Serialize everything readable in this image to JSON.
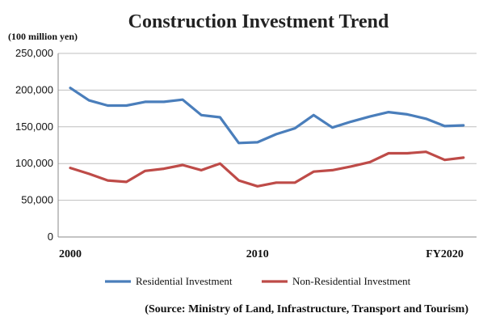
{
  "chart_data": {
    "type": "line",
    "title": "Construction Investment Trend",
    "unit_label": "(100 million yen)",
    "source": "(Source: Ministry of Land, Infrastructure, Transport and Tourism)",
    "x": [
      2000,
      2001,
      2002,
      2003,
      2004,
      2005,
      2006,
      2007,
      2008,
      2009,
      2010,
      2011,
      2012,
      2013,
      2014,
      2015,
      2016,
      2017,
      2018,
      2019,
      2020,
      2021
    ],
    "x_tick_labels": [
      {
        "x": 2000,
        "label": "2000"
      },
      {
        "x": 2010,
        "label": "2010"
      },
      {
        "x": 2020,
        "label": "FY2020"
      }
    ],
    "ylim": [
      0,
      250000
    ],
    "y_ticks": [
      0,
      50000,
      100000,
      150000,
      200000,
      250000
    ],
    "y_tick_labels": [
      "0",
      "50,000",
      "100,000",
      "150,000",
      "200,000",
      "250,000"
    ],
    "grid": "horizontal",
    "legend_position": "bottom",
    "series": [
      {
        "name": "Residential Investment",
        "color": "#4a7ebb",
        "values": [
          203000,
          186000,
          179000,
          179000,
          184000,
          184000,
          187000,
          166000,
          163000,
          128000,
          129000,
          140000,
          148000,
          166000,
          149000,
          157000,
          164000,
          170000,
          167000,
          161000,
          151000,
          152000
        ]
      },
      {
        "name": "Non-Residential Investment",
        "color": "#be4b48",
        "values": [
          94000,
          86000,
          77000,
          75000,
          90000,
          93000,
          98000,
          91000,
          100000,
          77000,
          69000,
          74000,
          74000,
          89000,
          91000,
          96000,
          102000,
          114000,
          114000,
          116000,
          105000,
          108000
        ]
      }
    ]
  }
}
